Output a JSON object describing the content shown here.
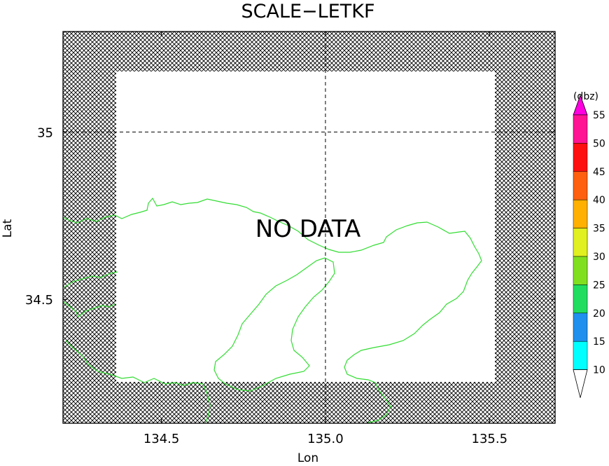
{
  "chart_data": {
    "type": "map",
    "title": "SCALE−LETKF",
    "message": "NO DATA",
    "xlabel": "Lon",
    "ylabel": "Lat",
    "xlim": [
      134.2,
      135.7
    ],
    "ylim": [
      34.13,
      35.3
    ],
    "xticks": [
      134.5,
      135.0,
      135.5
    ],
    "xtick_labels": [
      "134.5",
      "135.0",
      "135.5"
    ],
    "yticks": [
      34.5,
      35.0
    ],
    "ytick_labels": [
      "34.5",
      "35"
    ],
    "gridlines": {
      "lon": [
        135.0
      ],
      "lat": [
        35.0
      ],
      "style": "dashed"
    },
    "hatched_border_region": true,
    "coastline_color": "#33dd33",
    "colorbar": {
      "unit_label": "(dbz)",
      "levels": [
        "10",
        "15",
        "20",
        "25",
        "30",
        "35",
        "40",
        "45",
        "50",
        "55"
      ],
      "colors": [
        "#ffffff",
        "#00ffff",
        "#1f90ee",
        "#20dd60",
        "#80e020",
        "#e0f020",
        "#ffb000",
        "#ff6010",
        "#ff1010",
        "#ff1493",
        "#ff00e0"
      ]
    }
  }
}
